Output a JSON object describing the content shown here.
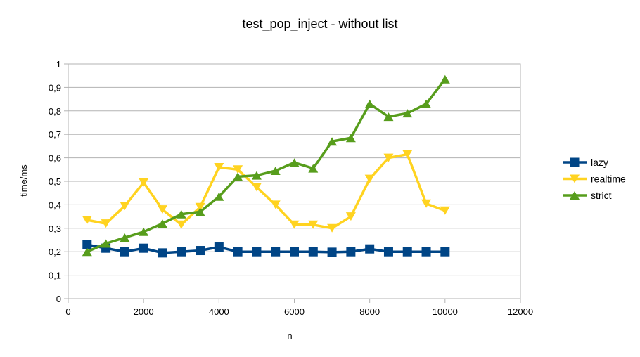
{
  "chart_data": {
    "type": "line",
    "title": "test_pop_inject - without list",
    "xlabel": "n",
    "ylabel": "time/ms",
    "xlim": [
      0,
      12000
    ],
    "ylim": [
      0,
      1
    ],
    "x_ticks": [
      "0",
      "2000",
      "4000",
      "6000",
      "8000",
      "10000",
      "12000"
    ],
    "y_ticks": [
      "0",
      "0,1",
      "0,2",
      "0,3",
      "0,4",
      "0,5",
      "0,6",
      "0,7",
      "0,8",
      "0,9",
      "1"
    ],
    "grid": "horizontal",
    "legend_position": "right",
    "x": [
      500,
      1000,
      1500,
      2000,
      2500,
      3000,
      3500,
      4000,
      4500,
      5000,
      5500,
      6000,
      6500,
      7000,
      7500,
      8000,
      8500,
      9000,
      9500,
      10000
    ],
    "series": [
      {
        "name": "lazy",
        "color": "#004586",
        "marker": "square",
        "values": [
          0.23,
          0.215,
          0.2,
          0.215,
          0.195,
          0.2,
          0.205,
          0.22,
          0.2,
          0.2,
          0.2,
          0.2,
          0.2,
          0.198,
          0.2,
          0.212,
          0.2,
          0.2,
          0.2,
          0.2
        ]
      },
      {
        "name": "realtime",
        "color": "#ffd320",
        "marker": "triangle-down",
        "values": [
          0.335,
          0.32,
          0.395,
          0.495,
          0.38,
          0.315,
          0.39,
          0.56,
          0.55,
          0.475,
          0.4,
          0.315,
          0.315,
          0.3,
          0.35,
          0.51,
          0.6,
          0.615,
          0.405,
          0.375
        ]
      },
      {
        "name": "strict",
        "color": "#579d1c",
        "marker": "triangle-up",
        "values": [
          0.2,
          0.235,
          0.26,
          0.285,
          0.32,
          0.36,
          0.37,
          0.435,
          0.52,
          0.525,
          0.545,
          0.58,
          0.555,
          0.67,
          0.685,
          0.83,
          0.775,
          0.79,
          0.83,
          0.935
        ]
      }
    ]
  }
}
